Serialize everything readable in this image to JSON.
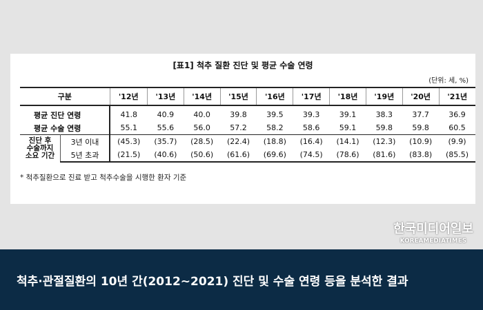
{
  "title": "[표1] 척추 질환 진단 및 평균 수술 연령",
  "unit": "(단위: 세, %)",
  "table": {
    "corner": "구분",
    "years": [
      "'12년",
      "'13년",
      "'14년",
      "'15년",
      "'16년",
      "'17년",
      "'18년",
      "'19년",
      "'20년",
      "'21년"
    ],
    "rows": [
      {
        "label": "평균 진단 연령",
        "values": [
          "41.8",
          "40.9",
          "40.0",
          "39.8",
          "39.5",
          "39.3",
          "39.1",
          "38.3",
          "37.7",
          "36.9"
        ]
      },
      {
        "label": "평균 수술 연령",
        "values": [
          "55.1",
          "55.6",
          "56.0",
          "57.2",
          "58.2",
          "58.6",
          "59.1",
          "59.8",
          "59.8",
          "60.5"
        ]
      }
    ],
    "group_label_lines": [
      "진단 후",
      "수술까지",
      "소요 기간"
    ],
    "subrows": [
      {
        "label": "3년 이내",
        "values": [
          "(45.3)",
          "(35.7)",
          "(28.5)",
          "(22.4)",
          "(18.8)",
          "(16.4)",
          "(14.1)",
          "(12.3)",
          "(10.9)",
          "(9.9)"
        ]
      },
      {
        "label": "5년 초과",
        "values": [
          "(21.5)",
          "(40.6)",
          "(50.6)",
          "(61.6)",
          "(69.6)",
          "(74.5)",
          "(78.6)",
          "(81.6)",
          "(83.8)",
          "(85.5)"
        ]
      }
    ]
  },
  "note": "* 척추질환으로 진료 받고 척추수술을 시행한 환자 기준",
  "logo": {
    "korean": "한국미디어일보",
    "english": "KOREAMEDIATIMES"
  },
  "caption": "척추·관절질환의 10년 간(2012~2021) 진단 및 수술 연령 등을 분석한 결과",
  "colors": {
    "banner": "#0c2b45",
    "background": "#e4e4e4"
  }
}
